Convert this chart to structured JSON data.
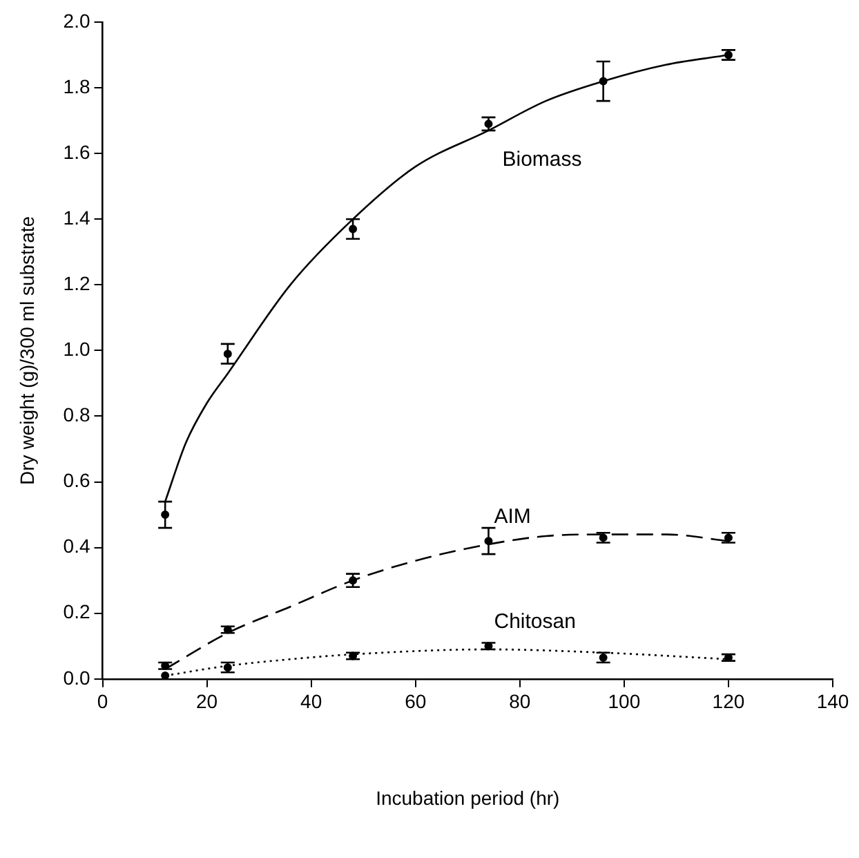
{
  "chart_data": {
    "type": "scatter",
    "xlabel": "Incubation period (hr)",
    "ylabel": "Dry weight (g)/300 ml substrate",
    "xlim": [
      0,
      140
    ],
    "xticks": [
      0,
      20,
      40,
      60,
      80,
      100,
      120,
      140
    ],
    "ylim": [
      0,
      2.0
    ],
    "yticks": [
      {
        "value": 0,
        "label": "0.0"
      },
      {
        "value": 0.2,
        "label": "0.2"
      },
      {
        "value": 0.4,
        "label": "0.4"
      },
      {
        "value": 0.6,
        "label": "0.6"
      },
      {
        "value": 0.8,
        "label": "0.8"
      },
      {
        "value": 1.0,
        "label": "1.0"
      },
      {
        "value": 1.2,
        "label": "1.2"
      },
      {
        "value": 1.4,
        "label": "1.4"
      },
      {
        "value": 1.6,
        "label": "1.6"
      },
      {
        "value": 1.8,
        "label": "1.8"
      },
      {
        "value": 2.0,
        "label": "2.0"
      }
    ],
    "grid": false,
    "legend": false,
    "marker": "circle",
    "series": [
      {
        "type": "line",
        "name": "Biomass",
        "color": "#000000",
        "line_style": "solid",
        "marker": "none",
        "x": [
          12,
          16,
          20,
          24,
          36,
          48,
          60,
          74,
          85,
          96,
          108,
          120
        ],
        "values": [
          0.54,
          0.72,
          0.84,
          0.93,
          1.2,
          1.4,
          1.56,
          1.67,
          1.76,
          1.82,
          1.87,
          1.9
        ]
      },
      {
        "type": "line",
        "name": "AIM",
        "color": "#000000",
        "line_style": "dashed",
        "marker": "none",
        "x": [
          12,
          24,
          36,
          48,
          60,
          74,
          85,
          96,
          108,
          120
        ],
        "values": [
          0.03,
          0.14,
          0.22,
          0.3,
          0.36,
          0.41,
          0.435,
          0.44,
          0.44,
          0.42
        ]
      },
      {
        "type": "line",
        "name": "Chitosan",
        "color": "#000000",
        "line_style": "dotted",
        "marker": "none",
        "x": [
          12,
          24,
          36,
          48,
          74,
          96,
          120
        ],
        "values": [
          0.01,
          0.04,
          0.06,
          0.075,
          0.09,
          0.08,
          0.06
        ]
      },
      {
        "color": "#000000",
        "x": [
          12,
          24,
          48,
          74,
          96,
          120
        ],
        "values": [
          0.5,
          0.99,
          1.37,
          1.69,
          1.82,
          1.9
        ],
        "errors": [
          0.04,
          0.03,
          0.03,
          0.02,
          0.06,
          0.015
        ]
      },
      {
        "color": "#000000",
        "x": [
          12,
          24,
          48,
          74,
          96,
          120
        ],
        "values": [
          0.04,
          0.15,
          0.3,
          0.42,
          0.43,
          0.43
        ],
        "errors": [
          0.01,
          0.01,
          0.02,
          0.04,
          0.015,
          0.015
        ]
      },
      {
        "color": "#000000",
        "x": [
          12,
          24,
          48,
          74,
          96,
          120
        ],
        "values": [
          0.01,
          0.035,
          0.07,
          0.1,
          0.065,
          0.065
        ],
        "errors": [
          null,
          0.015,
          0.01,
          0.01,
          0.015,
          0.01
        ]
      }
    ]
  }
}
